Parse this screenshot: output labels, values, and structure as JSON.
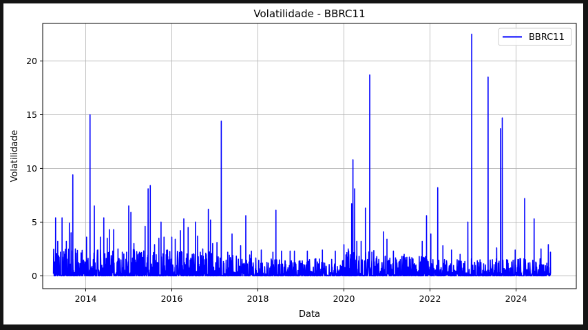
{
  "chart_data": {
    "type": "line",
    "title": "Volatilidade - BBRC11",
    "xlabel": "Data",
    "ylabel": "Volatilidade",
    "x_ticks": [
      "2014",
      "2016",
      "2018",
      "2020",
      "2022",
      "2024"
    ],
    "y_ticks": [
      "0",
      "5",
      "10",
      "15",
      "20"
    ],
    "xlim": [
      2013.0,
      2025.4
    ],
    "ylim": [
      -1.2,
      23.5
    ],
    "grid": true,
    "legend_position": "top-right",
    "series": [
      {
        "name": "BBRC11",
        "color": "#0000ff",
        "baseline_noise": [
          {
            "from": 2013.25,
            "to": 2017.0,
            "max": 2.5
          },
          {
            "from": 2017.0,
            "to": 2018.0,
            "max": 2.0
          },
          {
            "from": 2018.0,
            "to": 2020.0,
            "max": 1.6
          },
          {
            "from": 2020.0,
            "to": 2020.7,
            "max": 2.4
          },
          {
            "from": 2020.7,
            "to": 2022.0,
            "max": 1.9
          },
          {
            "from": 2022.0,
            "to": 2024.8,
            "max": 1.6
          }
        ],
        "peaks": [
          [
            2013.3,
            5.4
          ],
          [
            2013.35,
            3.2
          ],
          [
            2013.45,
            5.4
          ],
          [
            2013.55,
            3.2
          ],
          [
            2013.62,
            4.9
          ],
          [
            2013.66,
            4.0
          ],
          [
            2013.76,
            2.5
          ],
          [
            2013.92,
            2.2
          ],
          [
            2013.7,
            9.4
          ],
          [
            2014.02,
            3.6
          ],
          [
            2014.1,
            15.0
          ],
          [
            2014.2,
            6.5
          ],
          [
            2014.34,
            3.6
          ],
          [
            2014.42,
            5.4
          ],
          [
            2014.5,
            3.5
          ],
          [
            2014.55,
            4.3
          ],
          [
            2014.65,
            4.3
          ],
          [
            2014.75,
            2.5
          ],
          [
            2014.85,
            2.2
          ],
          [
            2014.95,
            2.2
          ],
          [
            2015.0,
            6.5
          ],
          [
            2015.05,
            5.9
          ],
          [
            2015.12,
            3.0
          ],
          [
            2015.25,
            2.2
          ],
          [
            2015.38,
            4.6
          ],
          [
            2015.45,
            8.1
          ],
          [
            2015.5,
            8.4
          ],
          [
            2015.6,
            2.9
          ],
          [
            2015.7,
            3.5
          ],
          [
            2015.75,
            5.0
          ],
          [
            2015.82,
            3.6
          ],
          [
            2015.9,
            2.4
          ],
          [
            2016.0,
            3.6
          ],
          [
            2016.08,
            3.4
          ],
          [
            2016.2,
            4.2
          ],
          [
            2016.28,
            5.3
          ],
          [
            2016.38,
            4.5
          ],
          [
            2016.55,
            5.0
          ],
          [
            2016.6,
            3.7
          ],
          [
            2016.72,
            2.5
          ],
          [
            2016.85,
            6.2
          ],
          [
            2016.9,
            5.2
          ],
          [
            2016.95,
            3.0
          ],
          [
            2017.05,
            3.1
          ],
          [
            2017.15,
            14.4
          ],
          [
            2017.3,
            2.2
          ],
          [
            2017.4,
            3.9
          ],
          [
            2017.6,
            2.8
          ],
          [
            2017.72,
            5.6
          ],
          [
            2017.85,
            2.3
          ],
          [
            2018.08,
            2.4
          ],
          [
            2018.35,
            2.2
          ],
          [
            2018.42,
            6.1
          ],
          [
            2018.55,
            2.3
          ],
          [
            2018.75,
            2.3
          ],
          [
            2018.85,
            2.3
          ],
          [
            2019.15,
            2.3
          ],
          [
            2019.5,
            2.4
          ],
          [
            2019.8,
            2.3
          ],
          [
            2020.0,
            2.9
          ],
          [
            2020.1,
            2.5
          ],
          [
            2020.18,
            6.7
          ],
          [
            2020.21,
            10.8
          ],
          [
            2020.25,
            8.1
          ],
          [
            2020.3,
            3.2
          ],
          [
            2020.4,
            3.2
          ],
          [
            2020.5,
            6.3
          ],
          [
            2020.6,
            18.7
          ],
          [
            2020.65,
            2.2
          ],
          [
            2020.75,
            1.6
          ],
          [
            2020.92,
            4.1
          ],
          [
            2021.0,
            3.4
          ],
          [
            2021.15,
            2.3
          ],
          [
            2021.4,
            2.0
          ],
          [
            2021.75,
            1.8
          ],
          [
            2021.82,
            3.2
          ],
          [
            2021.92,
            5.6
          ],
          [
            2022.02,
            3.9
          ],
          [
            2022.18,
            8.2
          ],
          [
            2022.3,
            2.8
          ],
          [
            2022.5,
            2.4
          ],
          [
            2022.7,
            2.0
          ],
          [
            2022.88,
            5.0
          ],
          [
            2022.97,
            22.5
          ],
          [
            2023.1,
            1.4
          ],
          [
            2023.35,
            18.5
          ],
          [
            2023.45,
            1.5
          ],
          [
            2023.55,
            2.6
          ],
          [
            2023.64,
            13.7
          ],
          [
            2023.68,
            14.7
          ],
          [
            2023.78,
            1.5
          ],
          [
            2023.98,
            2.4
          ],
          [
            2024.1,
            1.5
          ],
          [
            2024.2,
            7.2
          ],
          [
            2024.42,
            5.3
          ],
          [
            2024.58,
            2.5
          ],
          [
            2024.75,
            2.9
          ],
          [
            2024.8,
            2.2
          ]
        ]
      }
    ]
  }
}
